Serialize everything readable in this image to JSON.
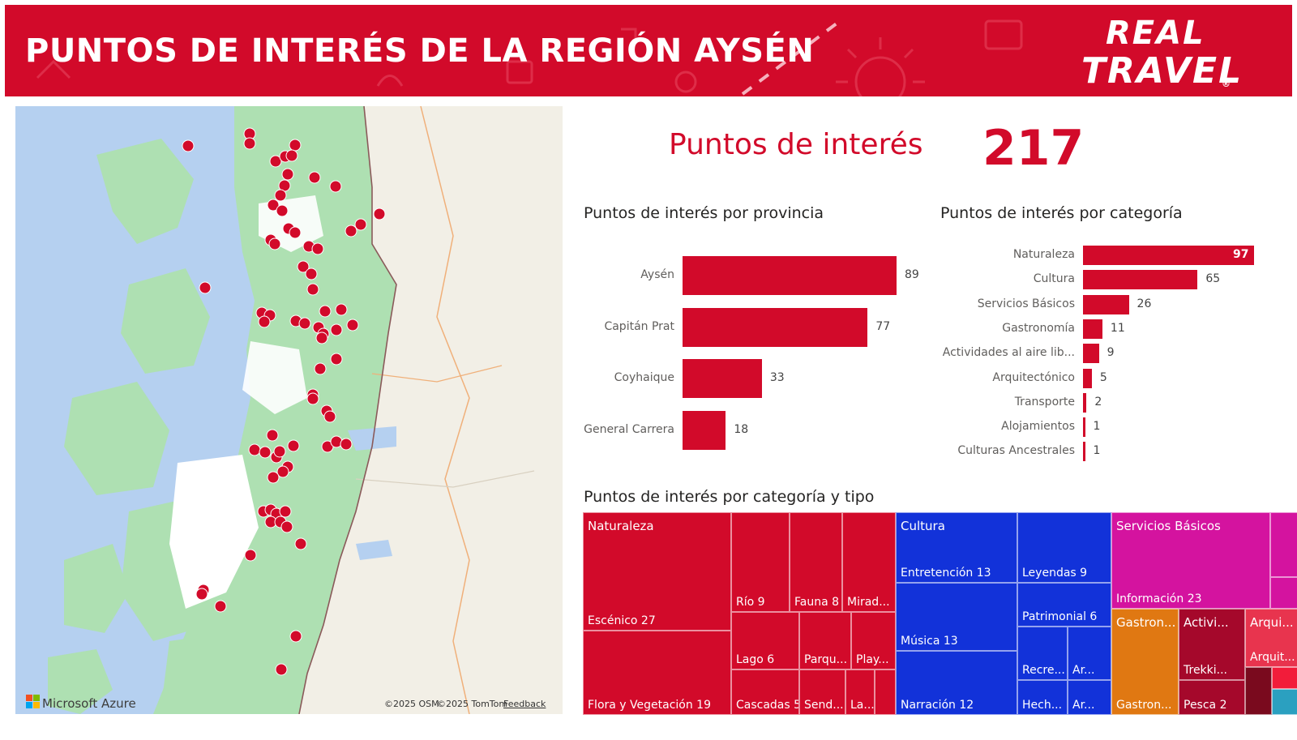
{
  "header": {
    "title": "PUNTOS DE INTERÉS DE LA REGIÓN AYSÉN",
    "logo_line1": "REAL",
    "logo_line2": "TRAVEL",
    "logo_mark": "®",
    "background_color": "#d20a2a"
  },
  "map": {
    "provider": "Microsoft Azure",
    "credit_osm": "©2025 OSM",
    "credit_tomtom": "©2025 TomTom",
    "feedback": "Feedback",
    "marker_color": "#d20a2a",
    "water_color": "#b5d0f0",
    "land_color": "#aee0b2"
  },
  "kpi": {
    "label": "Puntos de interés",
    "value": "217"
  },
  "chart_data": [
    {
      "type": "bar",
      "orientation": "horizontal",
      "title": "Puntos de interés por provincia",
      "categories": [
        "Aysén",
        "Capitán Prat",
        "Coyhaique",
        "General Carrera"
      ],
      "values": [
        89,
        77,
        33,
        18
      ],
      "color": "#d20a2a"
    },
    {
      "type": "bar",
      "orientation": "horizontal",
      "title": "Puntos de interés por categoría",
      "categories": [
        "Naturaleza",
        "Cultura",
        "Servicios Básicos",
        "Gastronomía",
        "Actividades al aire lib...",
        "Arquitectónico",
        "Transporte",
        "Alojamientos",
        "Culturas Ancestrales"
      ],
      "values": [
        97,
        65,
        26,
        11,
        9,
        5,
        2,
        1,
        1
      ],
      "color": "#d20a2a"
    },
    {
      "type": "treemap",
      "title": "Puntos de interés por categoría y tipo",
      "groups": [
        {
          "name": "Naturaleza",
          "color": "#d20a2a",
          "items": [
            {
              "label": "Escénico 27"
            },
            {
              "label": "Flora y Vegetación 19"
            },
            {
              "label": "Río 9"
            },
            {
              "label": "Fauna 8"
            },
            {
              "label": "Mirad..."
            },
            {
              "label": "Lago 6"
            },
            {
              "label": "Parqu..."
            },
            {
              "label": "Play..."
            },
            {
              "label": "Cascadas 5"
            },
            {
              "label": "Send..."
            },
            {
              "label": "La..."
            },
            {
              "label": ""
            }
          ]
        },
        {
          "name": "Cultura",
          "color": "#1232d9",
          "items": [
            {
              "label": "Entretención 13"
            },
            {
              "label": "Música 13"
            },
            {
              "label": "Narración 12"
            },
            {
              "label": "Leyendas 9"
            },
            {
              "label": "Patrimonial 6"
            },
            {
              "label": "Recre..."
            },
            {
              "label": "Ar..."
            },
            {
              "label": "Hech..."
            },
            {
              "label": "Ar..."
            }
          ]
        },
        {
          "name": "Servicios Básicos",
          "color": "#d4139f",
          "items": [
            {
              "label": "Información 23"
            },
            {
              "label": ""
            },
            {
              "label": ""
            }
          ]
        },
        {
          "name": "Gastron...",
          "color": "#e07812",
          "items": [
            {
              "label": "Gastron..."
            }
          ]
        },
        {
          "name": "Activi...",
          "color": "#a5082b",
          "items": [
            {
              "label": "Trekki..."
            },
            {
              "label": "Pesca 2"
            }
          ]
        },
        {
          "name": "Arqui...",
          "color": "#e8344e",
          "items": [
            {
              "label": "Arquit..."
            },
            {
              "label": ""
            },
            {
              "label": ""
            },
            {
              "label": ""
            }
          ]
        }
      ]
    }
  ]
}
